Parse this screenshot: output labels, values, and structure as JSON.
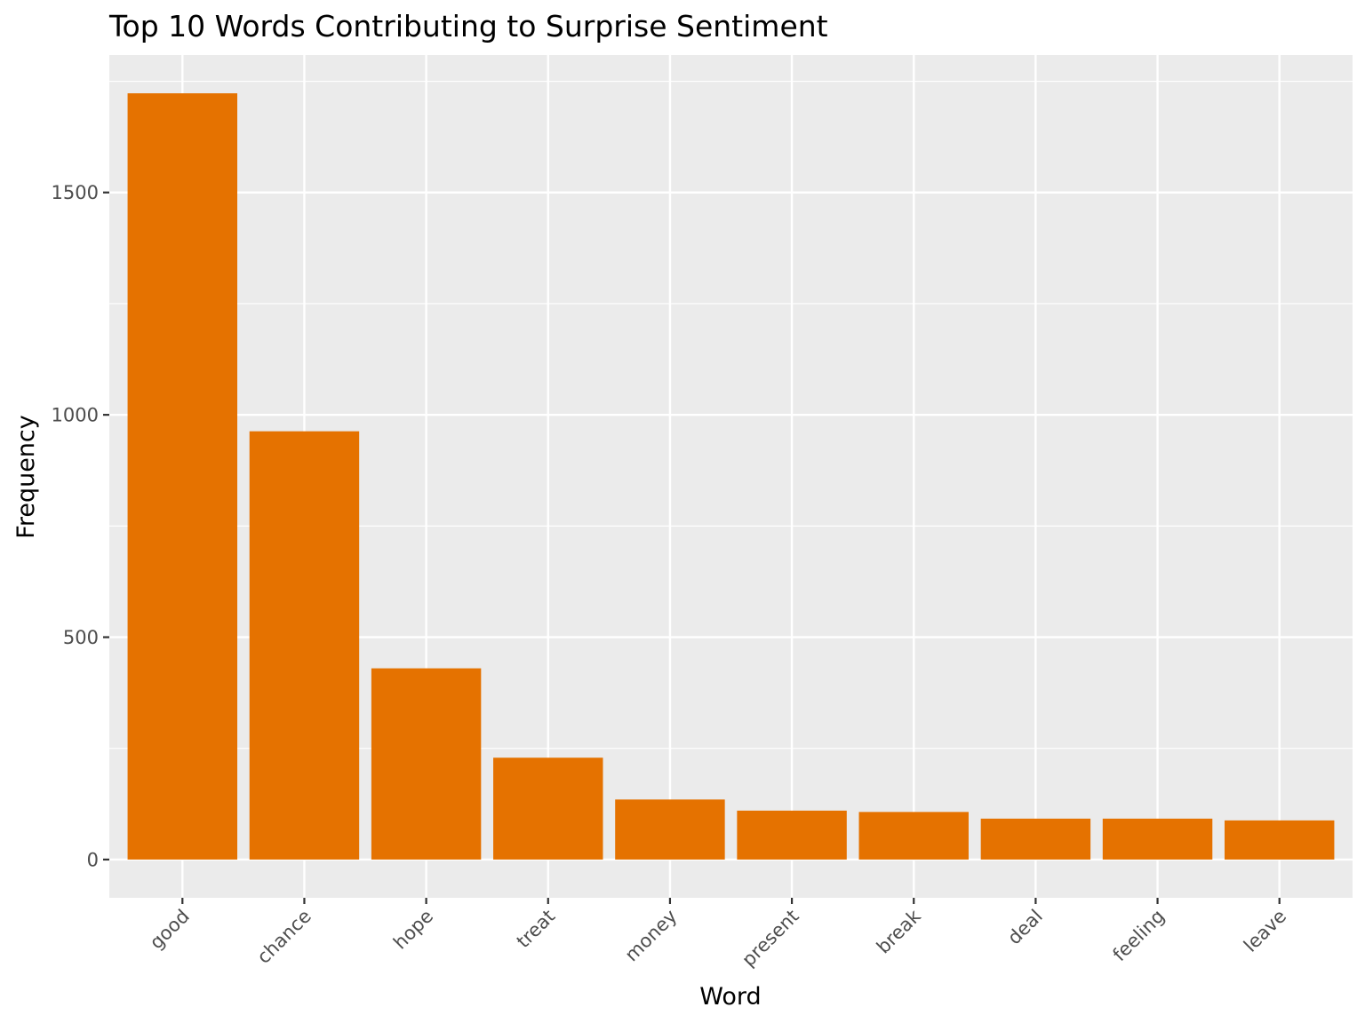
{
  "chart_data": {
    "type": "bar",
    "title": "Top 10 Words Contributing to Surprise Sentiment",
    "xlabel": "Word",
    "ylabel": "Frequency",
    "categories": [
      "good",
      "chance",
      "hope",
      "treat",
      "money",
      "present",
      "break",
      "deal",
      "feeling",
      "leave"
    ],
    "values": [
      1723,
      963,
      430,
      229,
      135,
      110,
      107,
      92,
      92,
      88
    ],
    "ylim": [
      -86,
      1809
    ],
    "yticks": [
      0,
      500,
      1000,
      1500
    ],
    "ytick_labels": [
      "0",
      "500",
      "1000",
      "1500"
    ],
    "grid": true,
    "legend": "none",
    "colors": {
      "bar": "#E57200",
      "panel_background": "#EBEBEB",
      "grid": "#FFFFFF",
      "tick_text": "#4D4D4D",
      "tick_mark": "#333333"
    }
  }
}
